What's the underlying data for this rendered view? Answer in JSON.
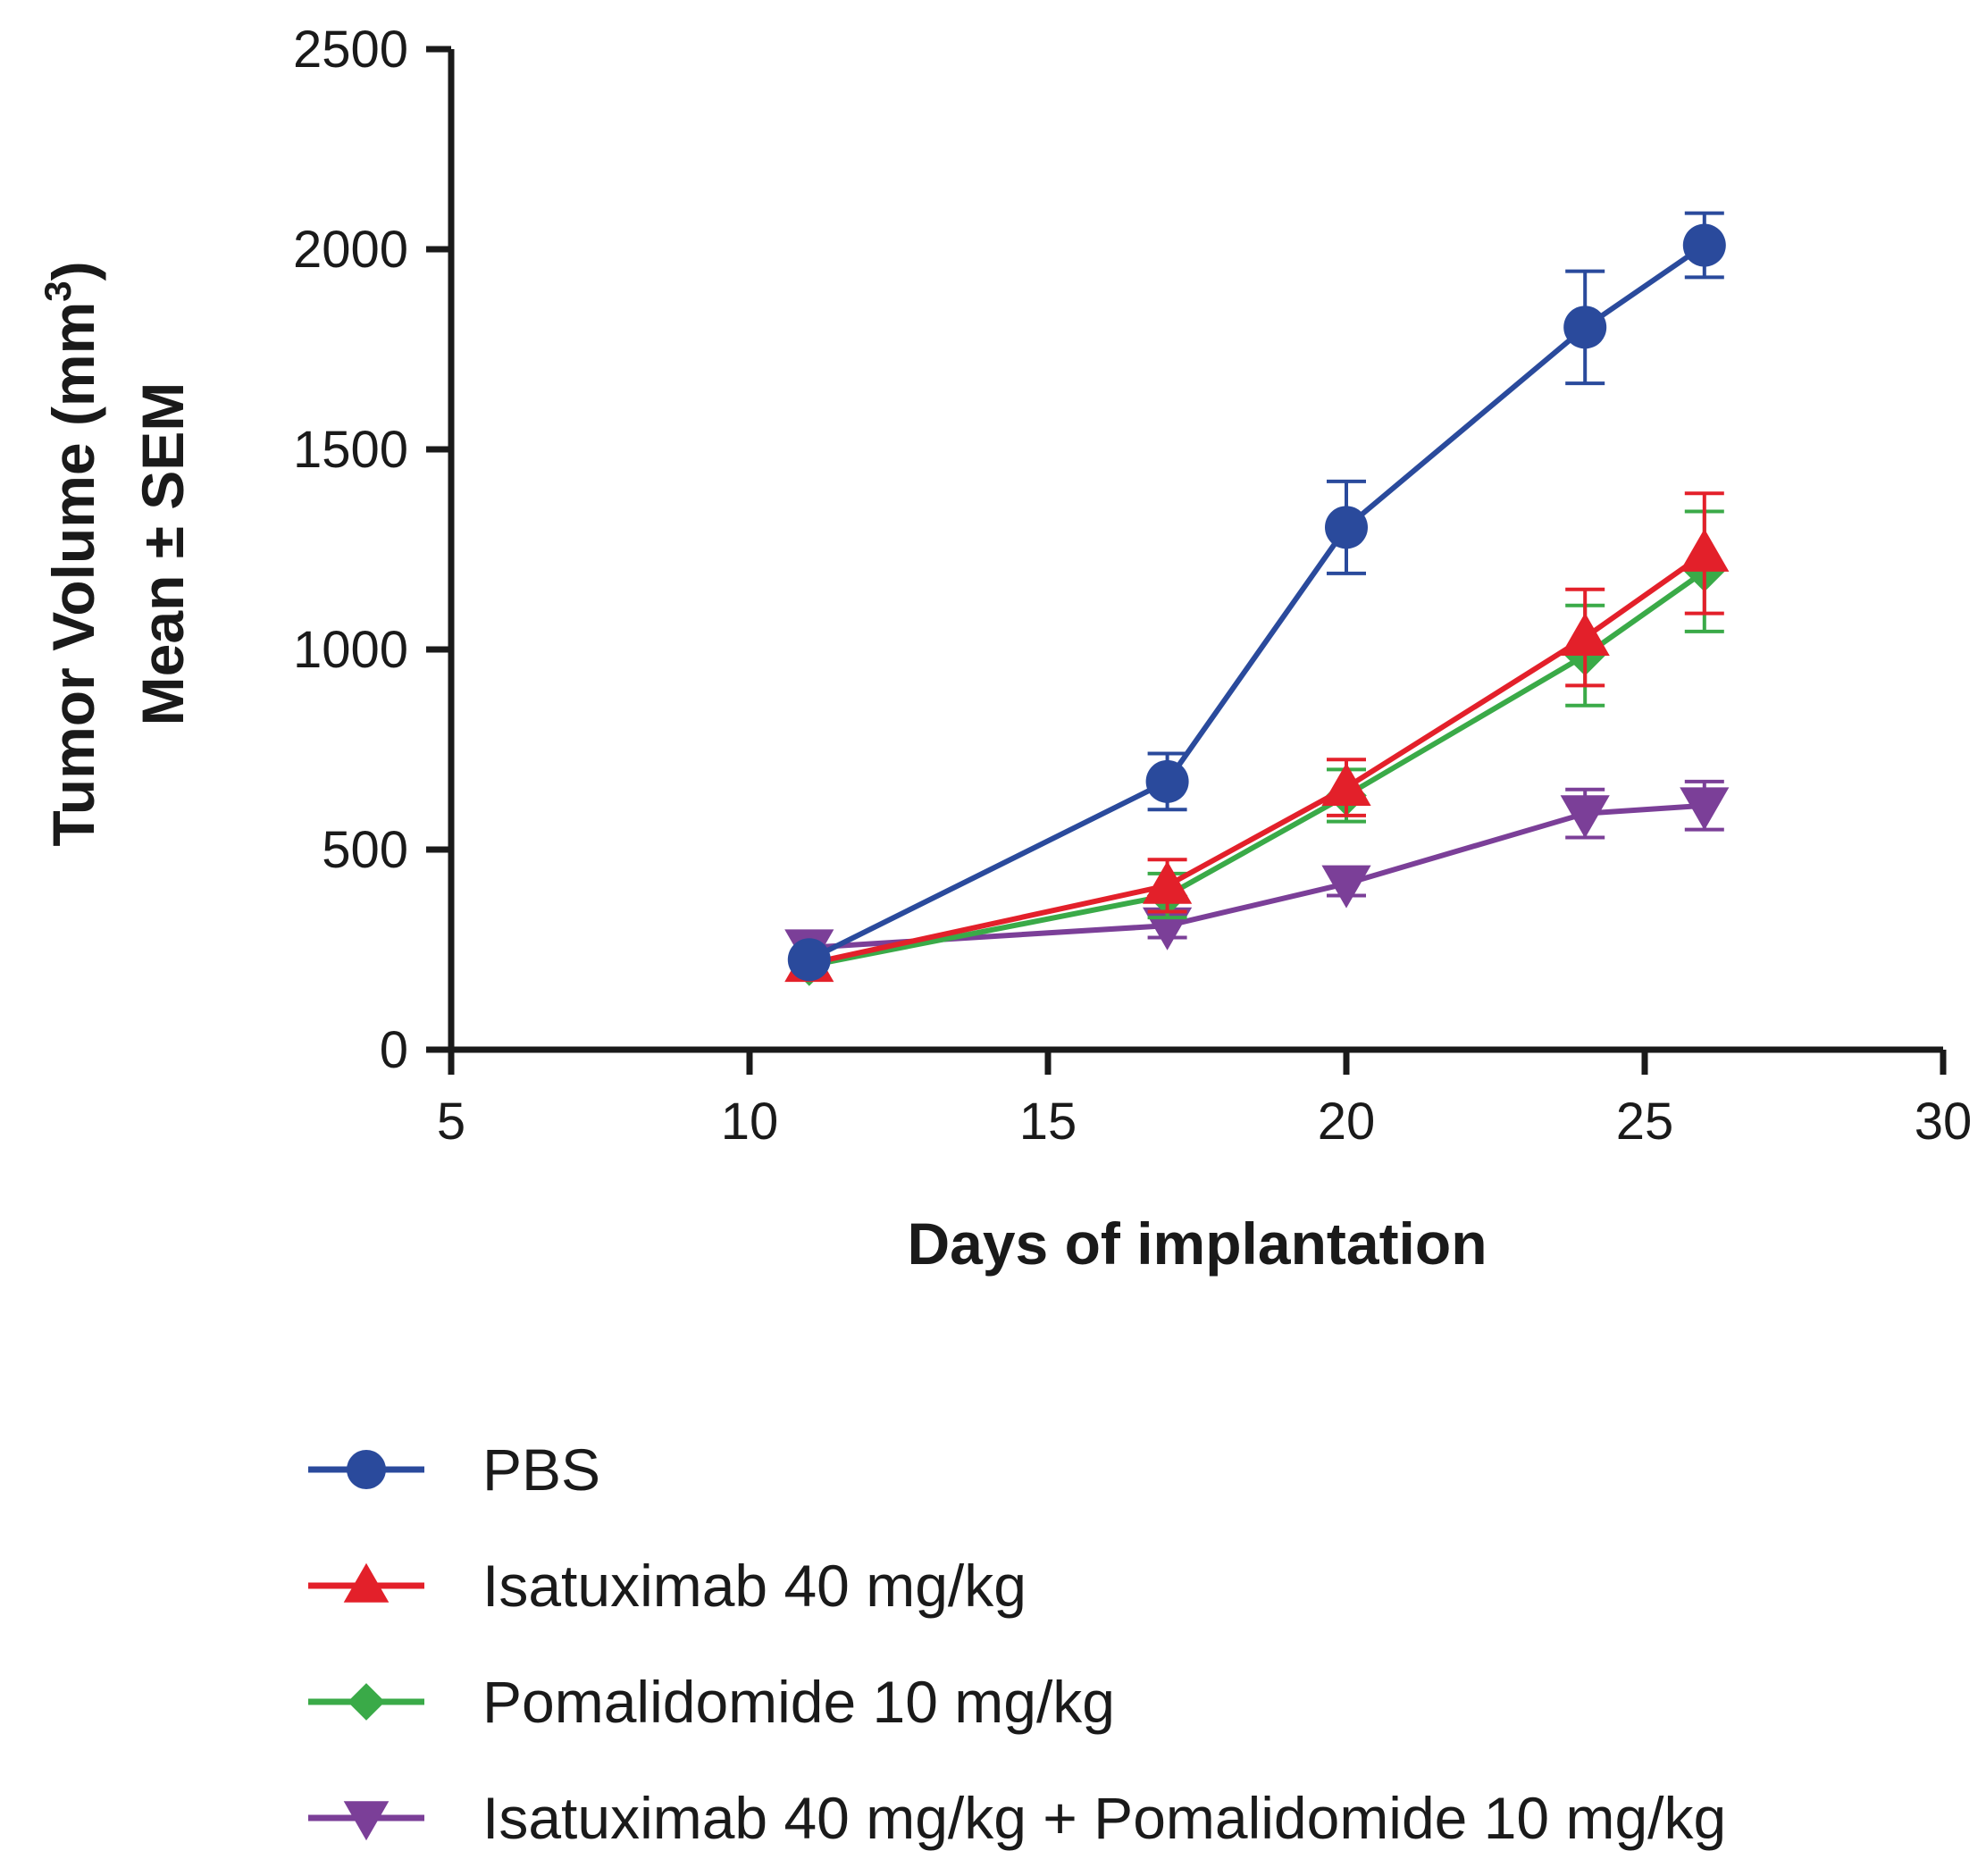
{
  "chart_data": {
    "type": "line",
    "title": "",
    "xlabel": "Days of implantation",
    "ylabel_line1": "Tumor Volume (mm",
    "ylabel_sup": "3",
    "ylabel_line1_end": ")",
    "ylabel_line2": "Mean ± SEM",
    "xlim": [
      5,
      30
    ],
    "ylim": [
      0,
      2500
    ],
    "xticks": [
      5,
      10,
      15,
      20,
      25,
      30
    ],
    "yticks": [
      0,
      500,
      1000,
      1500,
      2000,
      2500
    ],
    "x": [
      11,
      17,
      20,
      24,
      26
    ],
    "grid": false,
    "legend_position": "bottom",
    "series": [
      {
        "name": "PBS",
        "color": "#2a4a9c",
        "marker": "circle",
        "values": [
          225,
          670,
          1305,
          1805,
          2010
        ],
        "errors": [
          0,
          70,
          115,
          140,
          80
        ]
      },
      {
        "name": "Isatuximab 40 mg/kg",
        "color": "#e3202a",
        "marker": "triangle-up",
        "values": [
          215,
          410,
          655,
          1030,
          1240
        ],
        "errors": [
          0,
          65,
          70,
          120,
          150
        ]
      },
      {
        "name": "Pomalidomide 10 mg/kg",
        "color": "#3aaa48",
        "marker": "diamond",
        "values": [
          210,
          385,
          635,
          985,
          1195
        ],
        "errors": [
          0,
          55,
          65,
          125,
          150
        ]
      },
      {
        "name": "Isatuximab 40 mg/kg + Pomalidomide 10 mg/kg",
        "color": "#7b3f98",
        "marker": "triangle-down",
        "values": [
          255,
          310,
          415,
          590,
          610
        ],
        "errors": [
          0,
          30,
          30,
          60,
          60
        ]
      }
    ]
  }
}
